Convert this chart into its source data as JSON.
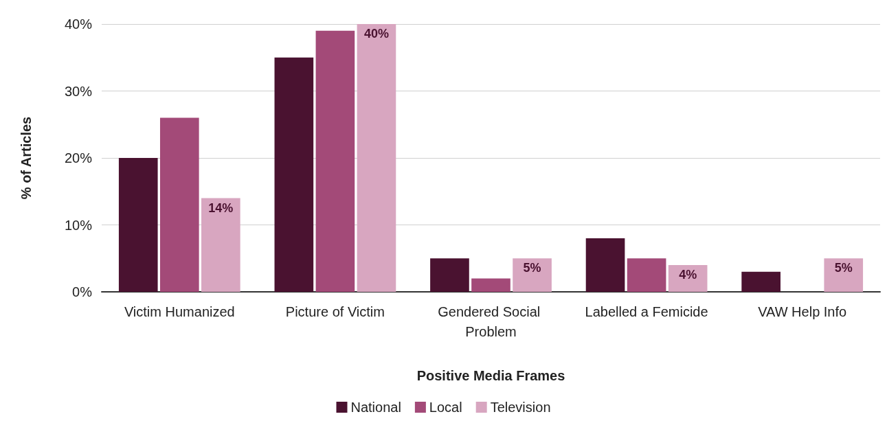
{
  "chart_data": {
    "type": "bar",
    "xlabel": "Positive Media Frames",
    "ylabel": "% of Articles",
    "categories": [
      "Victim Humanized",
      "Picture of Victim",
      "Gendered Social Problem",
      "Labelled a Femicide",
      "VAW Help Info"
    ],
    "series": [
      {
        "name": "National",
        "color": "#4a1230",
        "values": [
          20,
          35,
          5,
          8,
          3
        ]
      },
      {
        "name": "Local",
        "color": "#a34a78",
        "values": [
          26,
          39,
          2,
          5,
          0
        ]
      },
      {
        "name": "Television",
        "color": "#d8a6c0",
        "values": [
          14,
          40,
          5,
          4,
          5
        ],
        "value_labels": [
          "14%",
          "40%",
          "5%",
          "4%",
          "5%"
        ]
      }
    ],
    "ylim": [
      0,
      40
    ],
    "yticks": [
      {
        "value": 0,
        "label": "0%"
      },
      {
        "value": 10,
        "label": "10%"
      },
      {
        "value": 20,
        "label": "20%"
      },
      {
        "value": 30,
        "label": "30%"
      },
      {
        "value": 40,
        "label": "40%"
      }
    ],
    "grid": "y",
    "legend": "bottom"
  }
}
